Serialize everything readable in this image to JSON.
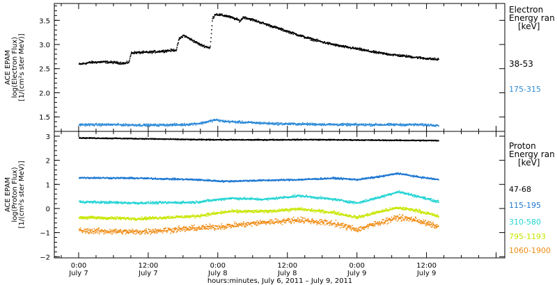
{
  "chart_data": [
    {
      "type": "scatter",
      "panel": "electron",
      "ylabel_lines": [
        "ACE EPAM",
        "log(Electron Flux)",
        "[1/(cm²s ster MeV)]"
      ],
      "ylim": [
        1.2,
        3.85
      ],
      "yticks": [
        1.5,
        2.0,
        2.5,
        3.0,
        3.5
      ],
      "ytick_labels": [
        "1.5",
        "2.0",
        "2.5",
        "3.0",
        "3.5"
      ],
      "legend_title": [
        "Electron",
        "Energy ran",
        "[keV]"
      ],
      "series": [
        {
          "name": "38-53",
          "color": "#000000",
          "points": [
            [
              0.0,
              2.6
            ],
            [
              2.0,
              2.64
            ],
            [
              4.0,
              2.65
            ],
            [
              6.0,
              2.64
            ],
            [
              8.0,
              2.62
            ],
            [
              8.6,
              2.65
            ],
            [
              9.0,
              2.84
            ],
            [
              12.0,
              2.85
            ],
            [
              15.0,
              2.88
            ],
            [
              16.8,
              2.9
            ],
            [
              17.2,
              3.12
            ],
            [
              18.0,
              3.2
            ],
            [
              19.5,
              3.1
            ],
            [
              21.0,
              3.0
            ],
            [
              22.6,
              2.94
            ],
            [
              23.0,
              3.55
            ],
            [
              23.5,
              3.64
            ],
            [
              25.5,
              3.6
            ],
            [
              27.0,
              3.54
            ],
            [
              27.8,
              3.5
            ],
            [
              28.3,
              3.58
            ],
            [
              30.0,
              3.52
            ],
            [
              33.0,
              3.4
            ],
            [
              36.0,
              3.28
            ],
            [
              39.0,
              3.16
            ],
            [
              42.0,
              3.06
            ],
            [
              45.0,
              2.98
            ],
            [
              48.0,
              2.92
            ],
            [
              51.0,
              2.85
            ],
            [
              54.0,
              2.8
            ],
            [
              57.0,
              2.76
            ],
            [
              60.0,
              2.72
            ],
            [
              62.0,
              2.7
            ]
          ]
        },
        {
          "name": "175-315",
          "color": "#2e8bd8",
          "points": [
            [
              0.0,
              1.35
            ],
            [
              6.0,
              1.35
            ],
            [
              12.0,
              1.34
            ],
            [
              18.0,
              1.35
            ],
            [
              21.0,
              1.38
            ],
            [
              23.5,
              1.45
            ],
            [
              25.0,
              1.42
            ],
            [
              28.0,
              1.4
            ],
            [
              34.0,
              1.37
            ],
            [
              40.0,
              1.36
            ],
            [
              46.0,
              1.35
            ],
            [
              52.0,
              1.35
            ],
            [
              58.0,
              1.35
            ],
            [
              62.0,
              1.34
            ]
          ]
        }
      ]
    },
    {
      "type": "scatter",
      "panel": "proton",
      "ylabel_lines": [
        "ACE EPAM",
        "log(Proton Flux)",
        "[1/(cm²s ster MeV)]"
      ],
      "ylim": [
        -2.05,
        3.2
      ],
      "yticks": [
        -2,
        -1,
        0,
        1,
        2,
        3
      ],
      "ytick_labels": [
        "−2",
        "−1",
        "0",
        "1",
        "2",
        "3"
      ],
      "legend_title": [
        "Proton",
        "Energy ran",
        "[keV]"
      ],
      "series": [
        {
          "name": "47-68",
          "color": "#000000",
          "points": [
            [
              0.0,
              2.95
            ],
            [
              10.0,
              2.92
            ],
            [
              20.0,
              2.88
            ],
            [
              30.0,
              2.87
            ],
            [
              40.0,
              2.88
            ],
            [
              50.0,
              2.86
            ],
            [
              62.0,
              2.84
            ]
          ]
        },
        {
          "name": "115-195",
          "color": "#1e78d2",
          "points": [
            [
              0.0,
              1.3
            ],
            [
              10.0,
              1.28
            ],
            [
              20.0,
              1.22
            ],
            [
              25.0,
              1.15
            ],
            [
              30.0,
              1.18
            ],
            [
              38.0,
              1.22
            ],
            [
              44.0,
              1.28
            ],
            [
              48.0,
              1.22
            ],
            [
              52.0,
              1.35
            ],
            [
              55.0,
              1.48
            ],
            [
              58.0,
              1.35
            ],
            [
              62.0,
              1.22
            ]
          ]
        },
        {
          "name": "310-580",
          "color": "#25d4d4",
          "points": [
            [
              0.0,
              0.3
            ],
            [
              10.0,
              0.25
            ],
            [
              20.0,
              0.28
            ],
            [
              26.0,
              0.45
            ],
            [
              32.0,
              0.4
            ],
            [
              38.0,
              0.55
            ],
            [
              44.0,
              0.4
            ],
            [
              48.0,
              0.25
            ],
            [
              52.0,
              0.5
            ],
            [
              55.0,
              0.72
            ],
            [
              58.0,
              0.55
            ],
            [
              62.0,
              0.3
            ]
          ]
        },
        {
          "name": "795-1193",
          "color": "#c8e600",
          "points": [
            [
              0.0,
              -0.35
            ],
            [
              10.0,
              -0.4
            ],
            [
              20.0,
              -0.3
            ],
            [
              26.0,
              -0.1
            ],
            [
              32.0,
              -0.1
            ],
            [
              38.0,
              0.0
            ],
            [
              44.0,
              -0.15
            ],
            [
              48.0,
              -0.35
            ],
            [
              52.0,
              -0.1
            ],
            [
              55.0,
              0.05
            ],
            [
              58.0,
              -0.05
            ],
            [
              62.0,
              -0.3
            ]
          ]
        },
        {
          "name": "1060-1900",
          "color": "#f08c14",
          "points": [
            [
              0.0,
              -0.9
            ],
            [
              10.0,
              -0.95
            ],
            [
              20.0,
              -0.8
            ],
            [
              26.0,
              -0.7
            ],
            [
              32.0,
              -0.55
            ],
            [
              38.0,
              -0.45
            ],
            [
              44.0,
              -0.6
            ],
            [
              48.0,
              -0.85
            ],
            [
              52.0,
              -0.55
            ],
            [
              55.0,
              -0.35
            ],
            [
              58.0,
              -0.45
            ],
            [
              62.0,
              -0.75
            ]
          ]
        }
      ]
    }
  ],
  "x_axis": {
    "range_hours": [
      -4.2,
      73.5
    ],
    "ticks": [
      {
        "h": 0,
        "time": "0:00",
        "date": "July 7"
      },
      {
        "h": 12,
        "time": "12:00",
        "date": "July 7"
      },
      {
        "h": 24,
        "time": "0:00",
        "date": "July 8"
      },
      {
        "h": 36,
        "time": "12:00",
        "date": "July 8"
      },
      {
        "h": 48,
        "time": "0:00",
        "date": "July 9"
      },
      {
        "h": 60,
        "time": "12:00",
        "date": "July 9"
      }
    ],
    "label": "hours:minutes, July  6, 2011 – July  9, 2011"
  }
}
